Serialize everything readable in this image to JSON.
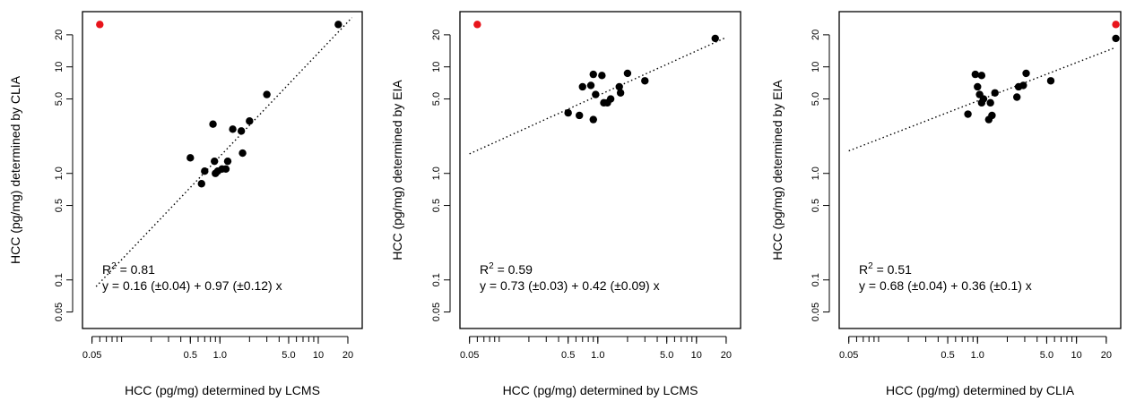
{
  "figure": {
    "background": "#ffffff",
    "colors": {
      "point": "#000000",
      "highlight": "#e8141b",
      "fit_line": "#000000"
    }
  },
  "chart_data": [
    {
      "type": "scatter",
      "x_scale": "log",
      "y_scale": "log",
      "xlim": [
        0.04,
        28
      ],
      "ylim": [
        0.035,
        33
      ],
      "xlabel": "HCC (pg/mg) determined by LCMS",
      "ylabel": "HCC (pg/mg) determined by CLIA",
      "x_ticks": [
        "0.05",
        "0.5",
        "1.0",
        "5.0",
        "10",
        "20"
      ],
      "y_ticks": [
        "0.05",
        "0.1",
        "0.5",
        "1.0",
        "5.0",
        "10",
        "20"
      ],
      "r2_label": "R",
      "r2_exponent": "2",
      "r2_value": " = 0.81",
      "equation": "y = 0.16 (±0.04) + 0.97 (±0.12) x",
      "fit": {
        "intercept": 0.16,
        "slope": 0.97,
        "x_range": [
          0.055,
          22
        ]
      },
      "points": [
        {
          "x": 0.5,
          "y": 1.4
        },
        {
          "x": 0.65,
          "y": 0.8
        },
        {
          "x": 0.7,
          "y": 1.05
        },
        {
          "x": 0.85,
          "y": 2.9
        },
        {
          "x": 0.88,
          "y": 1.3
        },
        {
          "x": 0.9,
          "y": 1.0
        },
        {
          "x": 0.95,
          "y": 1.05
        },
        {
          "x": 1.05,
          "y": 1.1
        },
        {
          "x": 1.15,
          "y": 1.1
        },
        {
          "x": 1.2,
          "y": 1.3
        },
        {
          "x": 1.35,
          "y": 2.6
        },
        {
          "x": 1.65,
          "y": 2.5
        },
        {
          "x": 1.7,
          "y": 1.55
        },
        {
          "x": 2.0,
          "y": 3.1
        },
        {
          "x": 3.0,
          "y": 5.5
        },
        {
          "x": 16.0,
          "y": 25.0
        }
      ],
      "outlier": {
        "x": 0.06,
        "y": 25.0
      }
    },
    {
      "type": "scatter",
      "x_scale": "log",
      "y_scale": "log",
      "xlim": [
        0.04,
        28
      ],
      "ylim": [
        0.035,
        33
      ],
      "xlabel": "HCC (pg/mg) determined by LCMS",
      "ylabel": "HCC (pg/mg) determined by EIA",
      "x_ticks": [
        "0.05",
        "0.5",
        "1.0",
        "5.0",
        "10",
        "20"
      ],
      "y_ticks": [
        "0.05",
        "0.1",
        "0.5",
        "1.0",
        "5.0",
        "10",
        "20"
      ],
      "r2_label": "R",
      "r2_exponent": "2",
      "r2_value": " = 0.59",
      "equation": "y = 0.73 (±0.03) + 0.42 (±0.09) x",
      "fit": {
        "intercept": 0.73,
        "slope": 0.42,
        "x_range": [
          0.05,
          20
        ]
      },
      "points": [
        {
          "x": 0.5,
          "y": 3.7
        },
        {
          "x": 0.65,
          "y": 3.5
        },
        {
          "x": 0.7,
          "y": 6.5
        },
        {
          "x": 0.85,
          "y": 6.7
        },
        {
          "x": 0.9,
          "y": 3.2
        },
        {
          "x": 0.9,
          "y": 8.5
        },
        {
          "x": 0.95,
          "y": 5.5
        },
        {
          "x": 1.1,
          "y": 8.3
        },
        {
          "x": 1.15,
          "y": 4.6
        },
        {
          "x": 1.25,
          "y": 4.6
        },
        {
          "x": 1.35,
          "y": 5.0
        },
        {
          "x": 1.65,
          "y": 6.5
        },
        {
          "x": 1.7,
          "y": 5.7
        },
        {
          "x": 2.0,
          "y": 8.7
        },
        {
          "x": 3.0,
          "y": 7.4
        },
        {
          "x": 15.5,
          "y": 18.5
        }
      ],
      "outlier": {
        "x": 0.06,
        "y": 25.0
      }
    },
    {
      "type": "scatter",
      "x_scale": "log",
      "y_scale": "log",
      "xlim": [
        0.04,
        28
      ],
      "ylim": [
        0.035,
        33
      ],
      "xlabel": "HCC (pg/mg) determined by CLIA",
      "ylabel": "HCC (pg/mg) determined by EIA",
      "x_ticks": [
        "0.05",
        "0.5",
        "1.0",
        "5.0",
        "10",
        "20"
      ],
      "y_ticks": [
        "0.05",
        "0.1",
        "0.5",
        "1.0",
        "5.0",
        "10",
        "20"
      ],
      "r2_label": "R",
      "r2_exponent": "2",
      "r2_value": " = 0.51",
      "equation": "y = 0.68 (±0.04) + 0.36 (±0.1) x",
      "fit": {
        "intercept": 0.68,
        "slope": 0.36,
        "x_range": [
          0.05,
          24
        ]
      },
      "points": [
        {
          "x": 0.8,
          "y": 3.6
        },
        {
          "x": 0.95,
          "y": 8.5
        },
        {
          "x": 1.0,
          "y": 6.5
        },
        {
          "x": 1.05,
          "y": 5.5
        },
        {
          "x": 1.1,
          "y": 4.6
        },
        {
          "x": 1.1,
          "y": 8.3
        },
        {
          "x": 1.15,
          "y": 5.0
        },
        {
          "x": 1.3,
          "y": 3.2
        },
        {
          "x": 1.35,
          "y": 4.6
        },
        {
          "x": 1.4,
          "y": 3.5
        },
        {
          "x": 1.5,
          "y": 5.7
        },
        {
          "x": 2.5,
          "y": 5.2
        },
        {
          "x": 2.6,
          "y": 6.5
        },
        {
          "x": 2.9,
          "y": 6.7
        },
        {
          "x": 3.1,
          "y": 8.7
        },
        {
          "x": 5.5,
          "y": 7.4
        },
        {
          "x": 25.0,
          "y": 18.5
        }
      ],
      "outlier": {
        "x": 25.0,
        "y": 25.0
      }
    }
  ]
}
